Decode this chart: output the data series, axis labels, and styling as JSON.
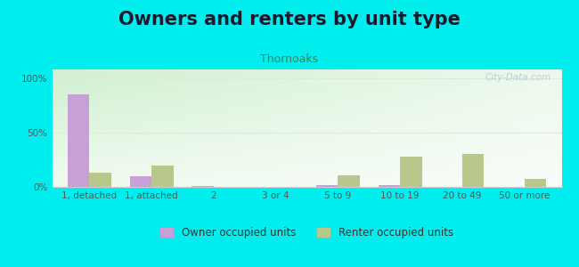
{
  "title": "Owners and renters by unit type",
  "subtitle": "Thornoaks",
  "categories": [
    "1, detached",
    "1, attached",
    "2",
    "3 or 4",
    "5 to 9",
    "10 to 19",
    "20 to 49",
    "50 or more"
  ],
  "owner_values": [
    85,
    10,
    1,
    0,
    2,
    2,
    0,
    0
  ],
  "renter_values": [
    13,
    20,
    0,
    0,
    11,
    28,
    30,
    7
  ],
  "owner_color": "#c8a0d8",
  "renter_color": "#b8c88a",
  "outer_bg": "#00eeee",
  "yticks": [
    0,
    50,
    100
  ],
  "ylabels": [
    "0%",
    "50%",
    "100%"
  ],
  "ylim": [
    0,
    108
  ],
  "bar_width": 0.35,
  "legend_owner": "Owner occupied units",
  "legend_renter": "Renter occupied units",
  "title_fontsize": 15,
  "subtitle_fontsize": 9,
  "axis_fontsize": 7.5,
  "legend_fontsize": 8.5,
  "grid_color": "#e0e8e0",
  "tick_color": "#555555",
  "watermark": "City-Data.com"
}
